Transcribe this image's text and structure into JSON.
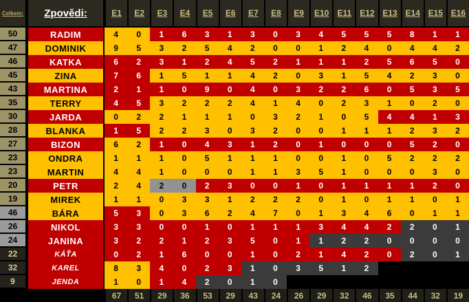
{
  "colors": {
    "red": "#C00000",
    "gold": "#FFC000",
    "gray_cell": "#929292",
    "dark_cell": "#3B3B3B",
    "tan_rownum": "#9C9466",
    "gray_rownum": "#9B9B9B",
    "dark_rownum": "#23221B",
    "header_bg": "#2B2920",
    "header_text": "#C9BE85",
    "background": "#000000"
  },
  "header": {
    "corner_label": "Celkem:",
    "name_label": "Zpovědi:",
    "columns": [
      "E1",
      "E2",
      "E3",
      "E4",
      "E5",
      "E6",
      "E7",
      "E8",
      "E9",
      "E10",
      "E11",
      "E12",
      "E13",
      "E14",
      "E15",
      "E16"
    ]
  },
  "rows": [
    {
      "total": "50",
      "num_style": "tan",
      "name": "RADIM",
      "name_style": "red",
      "cell_colors": "ggrrrrrrrrrrrrrr",
      "values": [
        "4",
        "0",
        "1",
        "6",
        "3",
        "1",
        "3",
        "0",
        "3",
        "4",
        "5",
        "5",
        "5",
        "8",
        "1",
        "1"
      ]
    },
    {
      "total": "47",
      "num_style": "tan",
      "name": "DOMINIK",
      "name_style": "gold",
      "cell_colors": "gggggggggggggggg",
      "values": [
        "9",
        "5",
        "3",
        "2",
        "5",
        "4",
        "2",
        "0",
        "0",
        "1",
        "2",
        "4",
        "0",
        "4",
        "4",
        "2"
      ]
    },
    {
      "total": "46",
      "num_style": "tan",
      "name": "KATKA",
      "name_style": "red",
      "cell_colors": "rrrrrrrrrrrrrrrr",
      "values": [
        "6",
        "2",
        "3",
        "1",
        "2",
        "4",
        "5",
        "2",
        "1",
        "1",
        "1",
        "2",
        "5",
        "6",
        "5",
        "0"
      ]
    },
    {
      "total": "45",
      "num_style": "tan",
      "name": "ZINA",
      "name_style": "gold",
      "cell_colors": "rrgggggggggggggg",
      "values": [
        "7",
        "6",
        "1",
        "5",
        "1",
        "1",
        "4",
        "2",
        "0",
        "3",
        "1",
        "5",
        "4",
        "2",
        "3",
        "0"
      ]
    },
    {
      "total": "43",
      "num_style": "tan",
      "name": "MARTINA",
      "name_style": "red",
      "cell_colors": "rrrrrrrrrrrrrrrr",
      "values": [
        "2",
        "1",
        "1",
        "0",
        "9",
        "0",
        "4",
        "0",
        "3",
        "2",
        "2",
        "6",
        "0",
        "5",
        "3",
        "5"
      ]
    },
    {
      "total": "35",
      "num_style": "tan",
      "name": "TERRY",
      "name_style": "gold",
      "cell_colors": "rrgggggggggggggg",
      "values": [
        "4",
        "5",
        "3",
        "2",
        "2",
        "2",
        "4",
        "1",
        "4",
        "0",
        "2",
        "3",
        "1",
        "0",
        "2",
        "0"
      ]
    },
    {
      "total": "30",
      "num_style": "tan",
      "name": "JARDA",
      "name_style": "red",
      "cell_colors": "ggggggggggggrrrr",
      "values": [
        "0",
        "2",
        "2",
        "1",
        "1",
        "1",
        "0",
        "3",
        "2",
        "1",
        "0",
        "5",
        "4",
        "4",
        "1",
        "3"
      ]
    },
    {
      "total": "28",
      "num_style": "tan",
      "name": "BLANKA",
      "name_style": "gold",
      "cell_colors": "rrgggggggggggggg",
      "values": [
        "1",
        "5",
        "2",
        "2",
        "3",
        "0",
        "3",
        "2",
        "0",
        "0",
        "1",
        "1",
        "1",
        "2",
        "3",
        "2"
      ]
    },
    {
      "total": "27",
      "num_style": "tan",
      "name": "BIZON",
      "name_style": "red",
      "cell_colors": "ggrrrrrrrrrrrrrr",
      "values": [
        "6",
        "2",
        "1",
        "0",
        "4",
        "3",
        "1",
        "2",
        "0",
        "1",
        "0",
        "0",
        "0",
        "5",
        "2",
        "0"
      ]
    },
    {
      "total": "23",
      "num_style": "tan",
      "name": "ONDRA",
      "name_style": "gold",
      "cell_colors": "gggggggggggggggg",
      "values": [
        "1",
        "1",
        "1",
        "0",
        "5",
        "1",
        "1",
        "1",
        "0",
        "0",
        "1",
        "0",
        "5",
        "2",
        "2",
        "2"
      ]
    },
    {
      "total": "23",
      "num_style": "tan",
      "name": "MARTIN",
      "name_style": "gold",
      "cell_colors": "gggggggggggggggg",
      "values": [
        "4",
        "4",
        "1",
        "0",
        "0",
        "0",
        "1",
        "1",
        "3",
        "5",
        "1",
        "0",
        "0",
        "0",
        "3",
        "0"
      ]
    },
    {
      "total": "20",
      "num_style": "tan",
      "name": "PETR",
      "name_style": "red",
      "cell_colors": "ggyyrrrrrrrrrrrr",
      "values": [
        "2",
        "4",
        "2",
        "0",
        "2",
        "3",
        "0",
        "0",
        "1",
        "0",
        "1",
        "1",
        "1",
        "1",
        "2",
        "0"
      ]
    },
    {
      "total": "19",
      "num_style": "tan",
      "name": "MIREK",
      "name_style": "gold",
      "cell_colors": "gggggggggggggggg",
      "values": [
        "1",
        "1",
        "0",
        "3",
        "3",
        "1",
        "2",
        "2",
        "2",
        "0",
        "1",
        "0",
        "1",
        "1",
        "0",
        "1"
      ]
    },
    {
      "total": "46",
      "num_style": "gray",
      "name": "BÁRA",
      "name_style": "gold",
      "cell_colors": "rrgggggggggggggg",
      "values": [
        "5",
        "3",
        "0",
        "3",
        "6",
        "2",
        "4",
        "7",
        "0",
        "1",
        "3",
        "4",
        "6",
        "0",
        "1",
        "1"
      ]
    },
    {
      "total": "26",
      "num_style": "gray",
      "name": "NIKOL",
      "name_style": "red",
      "cell_colors": "rrrrrrrrrrrrrddd",
      "values": [
        "3",
        "3",
        "0",
        "0",
        "1",
        "0",
        "1",
        "1",
        "1",
        "3",
        "4",
        "4",
        "2",
        "2",
        "0",
        "1"
      ]
    },
    {
      "total": "24",
      "num_style": "gray",
      "name": "JANINA",
      "name_style": "red",
      "cell_colors": "rrrrrrrrrddddddd",
      "values": [
        "3",
        "2",
        "2",
        "1",
        "2",
        "3",
        "5",
        "0",
        "1",
        "1",
        "2",
        "2",
        "0",
        "0",
        "0",
        "0"
      ]
    },
    {
      "total": "22",
      "num_style": "dark",
      "name": "KÁŤA",
      "name_style": "red-italic",
      "cell_colors": "rrrrrrrrrrrrrddd",
      "values": [
        "0",
        "2",
        "1",
        "6",
        "0",
        "0",
        "1",
        "0",
        "2",
        "1",
        "4",
        "2",
        "0",
        "2",
        "0",
        "1"
      ]
    },
    {
      "total": "32",
      "num_style": "dark",
      "name": "KAREL",
      "name_style": "red-italic",
      "cell_colors": "ggrrrrddddddkkkk",
      "values": [
        "8",
        "3",
        "4",
        "0",
        "2",
        "3",
        "1",
        "0",
        "3",
        "5",
        "1",
        "2",
        "",
        "",
        "",
        ""
      ]
    },
    {
      "total": "9",
      "num_style": "dark",
      "name": "JENDA",
      "name_style": "red-italic",
      "cell_colors": "ggrrddddkkkkkkkk",
      "values": [
        "1",
        "0",
        "1",
        "4",
        "2",
        "0",
        "1",
        "0",
        "",
        "",
        "",
        "",
        "",
        "",
        "",
        ""
      ]
    }
  ],
  "footer": {
    "totals": [
      "67",
      "51",
      "29",
      "36",
      "53",
      "29",
      "43",
      "24",
      "26",
      "29",
      "32",
      "46",
      "35",
      "44",
      "32",
      "19"
    ]
  }
}
